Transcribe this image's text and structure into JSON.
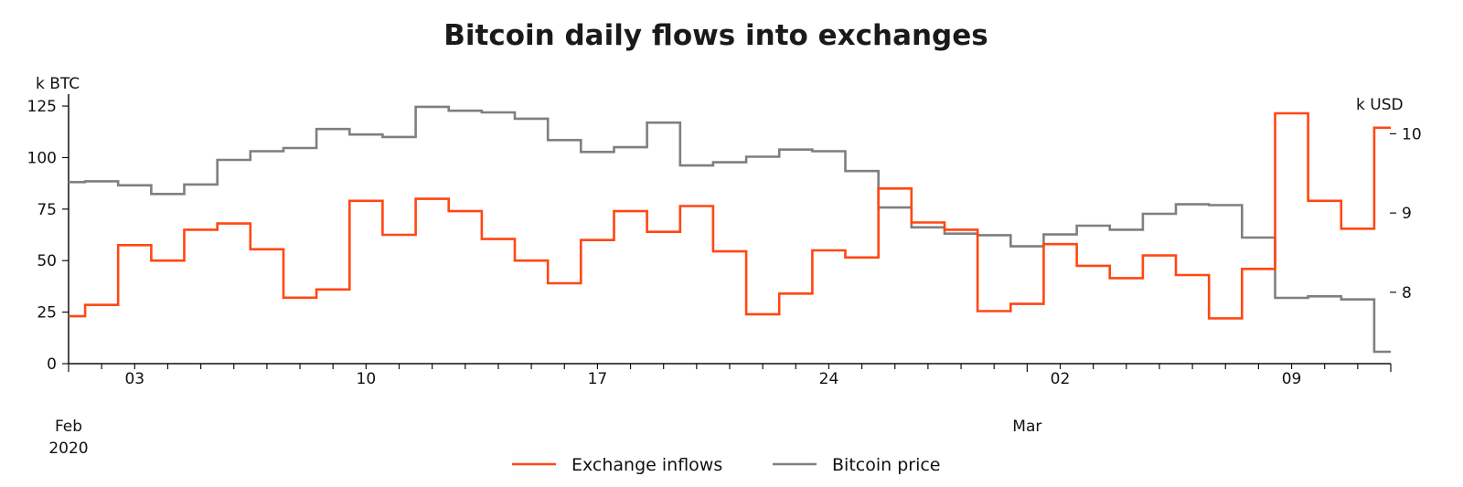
{
  "chart_data": {
    "type": "line",
    "step": "mid",
    "title": "Bitcoin daily flows into exchanges",
    "x": [
      "Feb 01",
      "Feb 02",
      "Feb 03",
      "Feb 04",
      "Feb 05",
      "Feb 06",
      "Feb 07",
      "Feb 08",
      "Feb 09",
      "Feb 10",
      "Feb 11",
      "Feb 12",
      "Feb 13",
      "Feb 14",
      "Feb 15",
      "Feb 16",
      "Feb 17",
      "Feb 18",
      "Feb 19",
      "Feb 20",
      "Feb 21",
      "Feb 22",
      "Feb 23",
      "Feb 24",
      "Feb 25",
      "Feb 26",
      "Feb 27",
      "Feb 28",
      "Feb 29",
      "Mar 01",
      "Mar 02",
      "Mar 03",
      "Mar 04",
      "Mar 05",
      "Mar 06",
      "Mar 07",
      "Mar 08",
      "Mar 09",
      "Mar 10",
      "Mar 11",
      "Mar 12"
    ],
    "x_ticks": [
      {
        "index": 2,
        "label": "03"
      },
      {
        "index": 9,
        "label": "10"
      },
      {
        "index": 16,
        "label": "17"
      },
      {
        "index": 23,
        "label": "24"
      },
      {
        "index": 30,
        "label": "02"
      },
      {
        "index": 37,
        "label": "09"
      }
    ],
    "month_labels": [
      {
        "index": 0,
        "lines": [
          "Feb",
          "2020"
        ]
      },
      {
        "index": 29,
        "lines": [
          "Mar"
        ]
      }
    ],
    "y_left": {
      "label": "k BTC",
      "ticks": [
        0,
        25,
        50,
        75,
        100,
        125
      ],
      "ylim": [
        0,
        130.8
      ]
    },
    "y_right": {
      "label": "k USD",
      "ticks": [
        8,
        9,
        10
      ],
      "ylim": [
        7.1,
        10.5
      ]
    },
    "series": [
      {
        "name": "Exchange inflows",
        "axis": "left",
        "color": "#ff4713",
        "values": [
          23,
          28.5,
          57.5,
          50,
          65,
          68,
          55.5,
          32,
          36,
          79,
          62.5,
          80,
          74,
          60.5,
          50,
          39,
          60,
          74,
          64,
          76.5,
          54.5,
          24,
          34,
          55,
          51.5,
          85,
          68.5,
          65,
          25.5,
          29,
          58,
          47.5,
          41.5,
          52.5,
          43,
          22,
          46,
          121.5,
          79,
          65.5,
          114.5
        ]
      },
      {
        "name": "Bitcoin price",
        "axis": "right",
        "color": "#7f7f7f",
        "values": [
          9.39,
          9.4,
          9.35,
          9.24,
          9.36,
          9.67,
          9.78,
          9.82,
          10.06,
          9.99,
          9.96,
          10.34,
          10.29,
          10.27,
          10.19,
          9.92,
          9.77,
          9.83,
          10.14,
          9.6,
          9.64,
          9.71,
          9.8,
          9.78,
          9.53,
          9.07,
          8.82,
          8.74,
          8.72,
          8.58,
          8.73,
          8.84,
          8.79,
          8.99,
          9.11,
          9.1,
          8.69,
          7.93,
          7.95,
          7.91,
          7.25
        ]
      }
    ],
    "legend": {
      "position": "bottom-center"
    },
    "grid": false
  }
}
